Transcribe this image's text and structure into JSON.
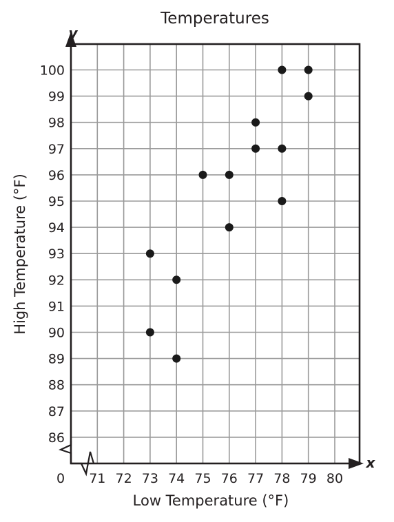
{
  "chart_data": {
    "type": "scatter",
    "title": "Temperatures",
    "xlabel": "Low Temperature (°F)",
    "ylabel": "High Temperature (°F)",
    "x_axis_letter": "x",
    "y_axis_letter": "y",
    "origin_label": "0",
    "x_ticks": [
      "71",
      "72",
      "73",
      "74",
      "75",
      "76",
      "77",
      "78",
      "79",
      "80"
    ],
    "y_ticks": [
      "86",
      "87",
      "88",
      "89",
      "90",
      "91",
      "92",
      "93",
      "94",
      "95",
      "96",
      "97",
      "98",
      "99",
      "100"
    ],
    "xlim": [
      70,
      81
    ],
    "ylim": [
      85,
      101
    ],
    "axis_breaks": true,
    "grid": true,
    "points": [
      {
        "x": 73,
        "y": 90
      },
      {
        "x": 73,
        "y": 93
      },
      {
        "x": 74,
        "y": 89
      },
      {
        "x": 74,
        "y": 92
      },
      {
        "x": 75,
        "y": 96
      },
      {
        "x": 76,
        "y": 94
      },
      {
        "x": 76,
        "y": 96
      },
      {
        "x": 77,
        "y": 97
      },
      {
        "x": 77,
        "y": 98
      },
      {
        "x": 78,
        "y": 95
      },
      {
        "x": 78,
        "y": 97
      },
      {
        "x": 78,
        "y": 100
      },
      {
        "x": 79,
        "y": 99
      },
      {
        "x": 79,
        "y": 100
      }
    ],
    "colors": {
      "ink": "#231f20",
      "grid": "#9a9a9a",
      "point": "#1a1a1a"
    }
  }
}
